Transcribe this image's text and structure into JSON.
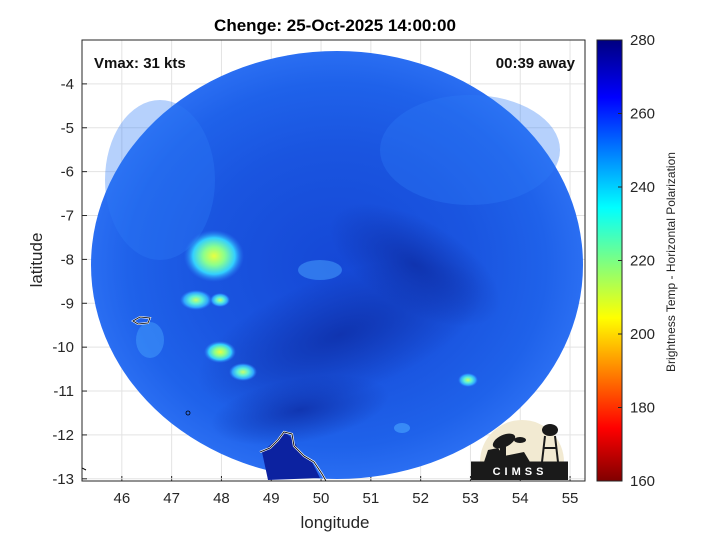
{
  "title": "Chenge: 25-Oct-2025 14:00:00",
  "annotations": {
    "vmax": "Vmax: 31 kts",
    "time_away": "00:39 away"
  },
  "axes": {
    "xlabel": "longitude",
    "ylabel": "latitude",
    "xlim": [
      45.2,
      55.3
    ],
    "ylim": [
      -13.05,
      -3.0
    ],
    "xticks": [
      46,
      47,
      48,
      49,
      50,
      51,
      52,
      53,
      54,
      55
    ],
    "yticks": [
      -4,
      -5,
      -6,
      -7,
      -8,
      -9,
      -10,
      -11,
      -12,
      -13
    ],
    "grid": true
  },
  "colorbar": {
    "label": "Brightness Temp - Horizontal Polarization",
    "range": [
      160,
      280
    ],
    "ticks": [
      160,
      180,
      200,
      220,
      240,
      260,
      280
    ],
    "colormap": "jet"
  },
  "swath": {
    "center_lon": 50.15,
    "center_lat": -8.05,
    "background_color": "#1f5fe6",
    "features": [
      {
        "lon": 47.85,
        "lat": -8.0,
        "label": "warm-patch",
        "value_k": 215
      },
      {
        "lon": 47.6,
        "lat": -8.95,
        "label": "warm-patch",
        "value_k": 230
      },
      {
        "lon": 48.0,
        "lat": -10.1,
        "label": "warm-patch",
        "value_k": 222
      },
      {
        "lon": 48.4,
        "lat": -10.6,
        "label": "warm-patch",
        "value_k": 228
      },
      {
        "lon": 52.9,
        "lat": -10.8,
        "label": "warm-patch",
        "value_k": 232
      },
      {
        "lon": 49.9,
        "lat": -8.1,
        "label": "cold-band",
        "value_k": 262
      }
    ]
  },
  "logo": {
    "text": "CIMSS"
  }
}
